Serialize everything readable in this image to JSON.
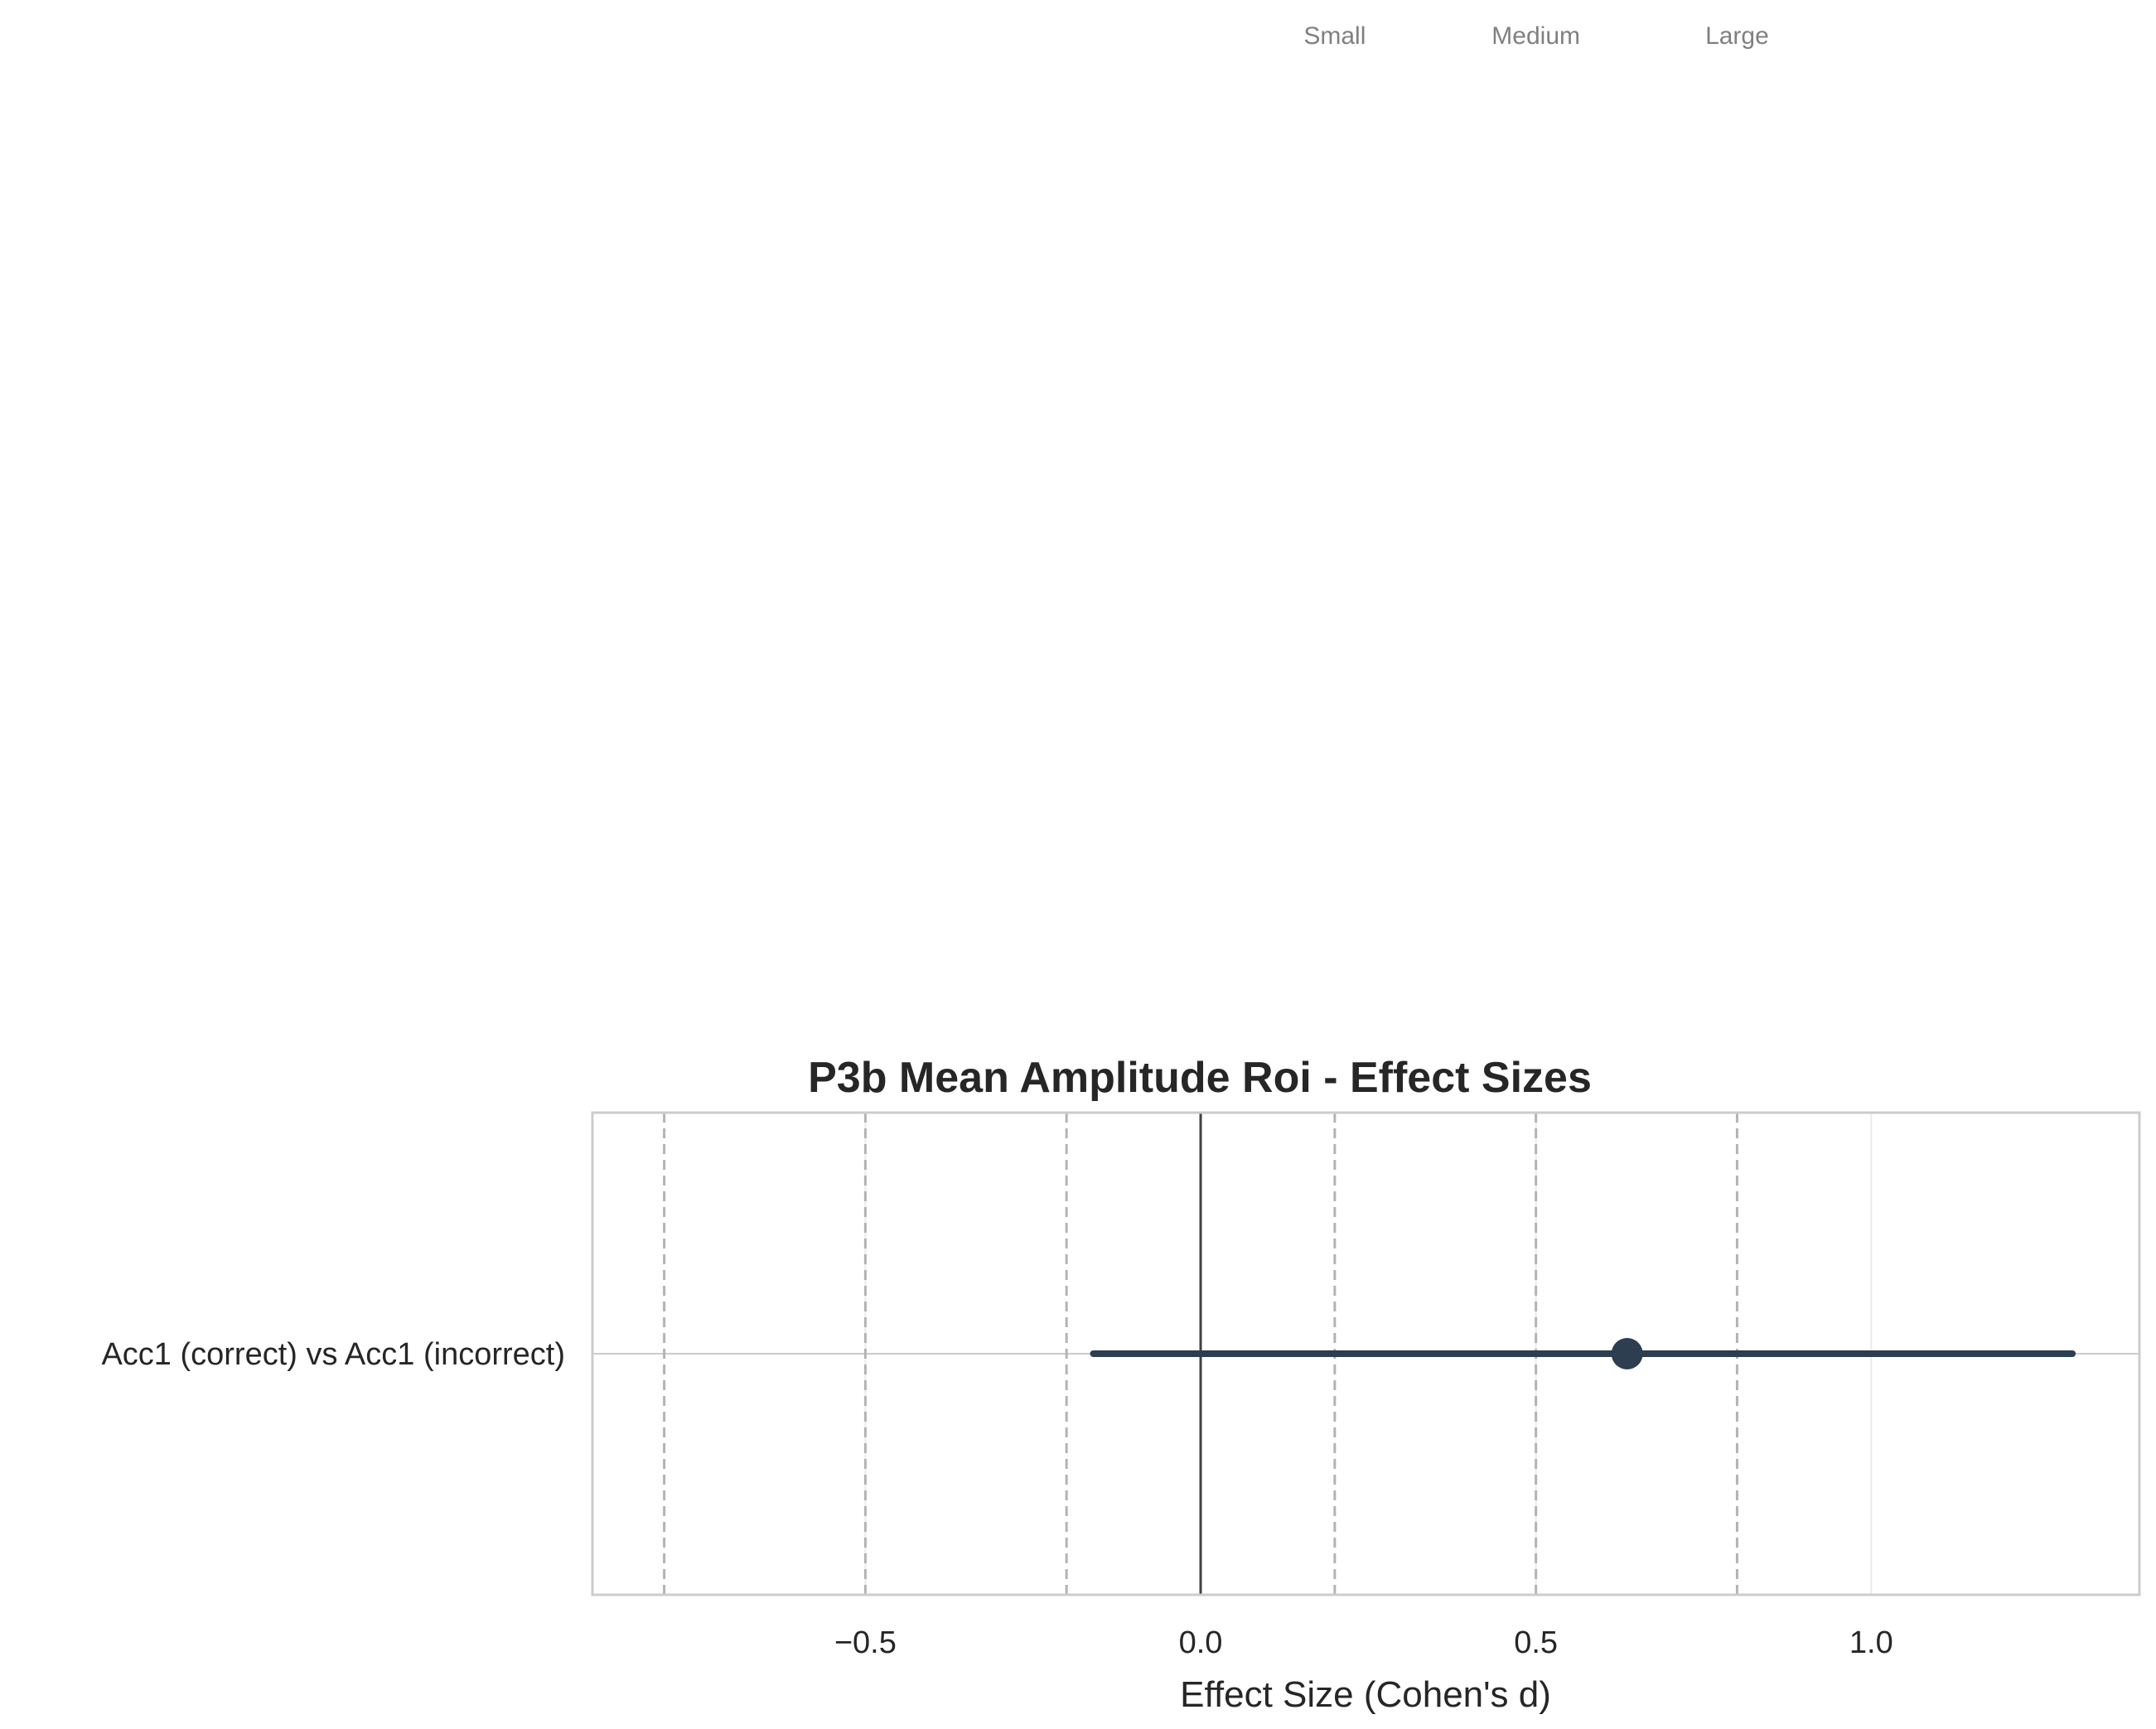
{
  "chart_data": {
    "type": "forest",
    "title": "P3b Mean Amplitude Roi - Effect Sizes",
    "xlabel": "Effect Size (Cohen's d)",
    "ylabel": "",
    "xlim": [
      -0.907,
      1.4
    ],
    "x_ticks": [
      -0.5,
      0.0,
      0.5,
      1.0
    ],
    "x_tick_labels": [
      "−0.5",
      "0.0",
      "0.5",
      "1.0"
    ],
    "grid": true,
    "reference_line": 0,
    "threshold_lines": [
      -0.8,
      -0.5,
      -0.2,
      0.2,
      0.5,
      0.8
    ],
    "threshold_labels": [
      {
        "x": 0.2,
        "label": "Small"
      },
      {
        "x": 0.5,
        "label": "Medium"
      },
      {
        "x": 0.8,
        "label": "Large"
      }
    ],
    "comparisons": [
      {
        "label": "Acc1 (correct) vs Acc1 (incorrect)",
        "d": 0.636,
        "ci_low": -0.16,
        "ci_high": 1.3
      }
    ],
    "colors": {
      "point": "#2c3e50",
      "ci": "#2c3e50",
      "threshold": "#b3b3b3",
      "reference": "#404040",
      "grid": "#ebebeb",
      "frame": "#cccccc"
    }
  }
}
